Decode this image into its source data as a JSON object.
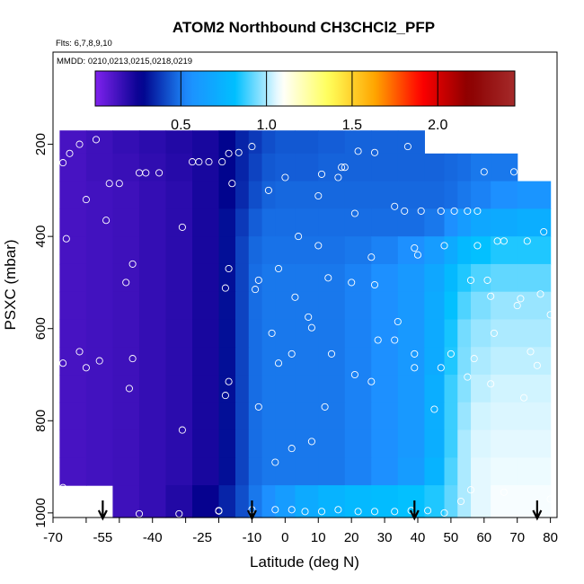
{
  "chart_data": {
    "type": "heatmap",
    "title": "ATOM2 Northbound CH3CHCl2_PFP",
    "notes": {
      "flights": "Flts: 6,7,8,9,10",
      "dates": "MMDD: 0210,0213,0215,0218,0219"
    },
    "xlabel": "Latitude (deg N)",
    "ylabel": "PSXC (mbar)",
    "xlim": [
      -70,
      82
    ],
    "ylim": [
      1010,
      0
    ],
    "x_ticks": [
      -70,
      -60,
      -50,
      -40,
      -30,
      -20,
      -10,
      0,
      10,
      20,
      30,
      40,
      50,
      60,
      70,
      80
    ],
    "x_tick_labels": [
      "-70",
      "-55",
      "-40",
      "-25",
      "-10",
      "0",
      "10",
      "20",
      "30",
      "40",
      "50",
      "60",
      "70",
      "80"
    ],
    "x_tick_label_values": [
      -70,
      -55,
      -40,
      -25,
      -10,
      0,
      10,
      20,
      30,
      40,
      50,
      60,
      70,
      80
    ],
    "y_tick_values": [
      200,
      400,
      600,
      800,
      1000
    ],
    "y_tick_labels": [
      "200",
      "400",
      "600",
      "800",
      "1000"
    ],
    "colorbar": {
      "range": [
        0,
        2.45
      ],
      "ticks": [
        0.5,
        1.0,
        1.5,
        2.0
      ],
      "tick_labels": [
        "0.5",
        "1.0",
        "1.5",
        "2.0"
      ],
      "colors": [
        "#7f22ee",
        "#00008b",
        "#1e8fff",
        "#00bfff",
        "#ffffff",
        "#ffff5a",
        "#ffa500",
        "#ff0000",
        "#8b0000",
        "#a52a2a"
      ]
    },
    "grid": false,
    "profile_markers_lat": [
      -55,
      -10,
      39,
      76
    ],
    "field": {
      "lat_bins": [
        -68,
        -60,
        -52,
        -44,
        -36,
        -28,
        -20,
        -15,
        -11,
        -7,
        -3,
        3,
        10,
        18,
        26,
        34,
        42,
        48,
        52,
        56,
        62,
        70,
        80
      ],
      "p_bins": [
        170,
        220,
        280,
        340,
        400,
        460,
        520,
        580,
        640,
        700,
        760,
        820,
        880,
        940,
        1010
      ],
      "values": [
        [
          0.12,
          0.14,
          0.16,
          0.18,
          0.2,
          0.22,
          0.28,
          0.34,
          0.38,
          0.42,
          0.44,
          0.44,
          0.45,
          0.46,
          0.46,
          0.46,
          null,
          null,
          null,
          null,
          null,
          null
        ],
        [
          0.12,
          0.14,
          0.15,
          0.17,
          0.19,
          0.22,
          0.28,
          0.34,
          0.4,
          0.44,
          0.45,
          0.45,
          0.46,
          0.46,
          0.46,
          0.46,
          0.46,
          0.47,
          0.48,
          0.5,
          0.5,
          null
        ],
        [
          0.12,
          0.13,
          0.14,
          0.16,
          0.18,
          0.22,
          0.28,
          0.35,
          0.42,
          0.46,
          0.47,
          0.47,
          0.47,
          0.47,
          0.47,
          0.47,
          0.47,
          0.48,
          0.5,
          0.52,
          0.55,
          0.58
        ],
        [
          0.12,
          0.13,
          0.14,
          0.16,
          0.18,
          0.22,
          0.3,
          0.38,
          0.45,
          0.48,
          0.48,
          0.48,
          0.48,
          0.48,
          0.48,
          0.48,
          0.5,
          0.55,
          0.62,
          0.68,
          0.7,
          0.72
        ],
        [
          0.12,
          0.13,
          0.14,
          0.16,
          0.18,
          0.22,
          0.3,
          0.4,
          0.47,
          0.49,
          0.49,
          0.49,
          0.49,
          0.5,
          0.52,
          0.55,
          0.62,
          0.7,
          0.78,
          0.82,
          0.85,
          0.85
        ],
        [
          0.12,
          0.13,
          0.14,
          0.16,
          0.18,
          0.22,
          0.3,
          0.4,
          0.48,
          0.5,
          0.5,
          0.5,
          0.5,
          0.52,
          0.55,
          0.6,
          0.68,
          0.78,
          0.85,
          0.9,
          0.92,
          0.92
        ],
        [
          0.12,
          0.13,
          0.14,
          0.16,
          0.18,
          0.22,
          0.3,
          0.4,
          0.48,
          0.5,
          0.5,
          0.5,
          0.5,
          0.52,
          0.55,
          0.6,
          0.7,
          0.82,
          0.9,
          0.95,
          0.98,
          0.98
        ],
        [
          0.12,
          0.13,
          0.14,
          0.16,
          0.18,
          0.22,
          0.3,
          0.4,
          0.48,
          0.5,
          0.5,
          0.5,
          0.5,
          0.52,
          0.55,
          0.6,
          0.7,
          0.84,
          0.94,
          0.98,
          1.0,
          1.0
        ],
        [
          0.12,
          0.13,
          0.14,
          0.16,
          0.18,
          0.22,
          0.3,
          0.4,
          0.48,
          0.5,
          0.5,
          0.5,
          0.5,
          0.52,
          0.55,
          0.6,
          0.7,
          0.85,
          0.95,
          1.0,
          1.02,
          1.02
        ],
        [
          0.12,
          0.13,
          0.14,
          0.16,
          0.18,
          0.22,
          0.3,
          0.4,
          0.48,
          0.5,
          0.5,
          0.5,
          0.5,
          0.52,
          0.55,
          0.6,
          0.72,
          0.88,
          0.96,
          1.02,
          1.04,
          1.04
        ],
        [
          0.12,
          0.13,
          0.14,
          0.16,
          0.18,
          0.22,
          0.3,
          0.4,
          0.48,
          0.5,
          0.5,
          0.5,
          0.5,
          0.52,
          0.55,
          0.6,
          0.72,
          0.88,
          0.98,
          1.04,
          1.05,
          1.05
        ],
        [
          0.12,
          0.13,
          0.14,
          0.16,
          0.18,
          0.22,
          0.3,
          0.4,
          0.48,
          0.5,
          0.5,
          0.5,
          0.5,
          0.52,
          0.55,
          0.6,
          0.72,
          0.88,
          1.0,
          1.05,
          1.06,
          1.06
        ],
        [
          0.12,
          0.13,
          0.14,
          0.16,
          0.18,
          0.22,
          0.3,
          0.4,
          0.48,
          0.5,
          0.5,
          0.5,
          0.5,
          0.52,
          0.55,
          0.62,
          0.75,
          0.9,
          1.0,
          1.06,
          1.07,
          1.07
        ],
        [
          null,
          null,
          0.14,
          0.16,
          0.2,
          0.26,
          0.34,
          0.42,
          0.5,
          0.55,
          0.62,
          0.7,
          0.75,
          0.78,
          0.8,
          0.82,
          0.85,
          0.92,
          1.0,
          1.06,
          1.08,
          1.08
        ]
      ]
    },
    "samples": [
      {
        "lat": -67,
        "p": 240
      },
      {
        "lat": -65,
        "p": 220
      },
      {
        "lat": -62,
        "p": 200
      },
      {
        "lat": -57,
        "p": 190
      },
      {
        "lat": -60,
        "p": 320
      },
      {
        "lat": -66,
        "p": 405
      },
      {
        "lat": -53,
        "p": 285
      },
      {
        "lat": -50,
        "p": 285
      },
      {
        "lat": -54,
        "p": 365
      },
      {
        "lat": -42,
        "p": 262
      },
      {
        "lat": -44,
        "p": 262
      },
      {
        "lat": -38,
        "p": 262
      },
      {
        "lat": -48,
        "p": 500
      },
      {
        "lat": -46,
        "p": 460
      },
      {
        "lat": -62,
        "p": 650
      },
      {
        "lat": -60,
        "p": 685
      },
      {
        "lat": -56,
        "p": 670
      },
      {
        "lat": -67,
        "p": 675
      },
      {
        "lat": -47,
        "p": 730
      },
      {
        "lat": -46,
        "p": 665
      },
      {
        "lat": -67,
        "p": 945
      },
      {
        "lat": -60,
        "p": 950
      },
      {
        "lat": -31,
        "p": 380
      },
      {
        "lat": -28,
        "p": 238
      },
      {
        "lat": -26,
        "p": 238
      },
      {
        "lat": -23,
        "p": 238
      },
      {
        "lat": -19,
        "p": 238
      },
      {
        "lat": -17,
        "p": 220
      },
      {
        "lat": -14,
        "p": 218
      },
      {
        "lat": -10,
        "p": 205
      },
      {
        "lat": -16,
        "p": 285
      },
      {
        "lat": -17,
        "p": 470
      },
      {
        "lat": -18,
        "p": 512
      },
      {
        "lat": -17,
        "p": 715
      },
      {
        "lat": -18,
        "p": 745
      },
      {
        "lat": -9,
        "p": 515
      },
      {
        "lat": -8,
        "p": 495
      },
      {
        "lat": -5,
        "p": 300
      },
      {
        "lat": -2,
        "p": 470
      },
      {
        "lat": 0,
        "p": 272
      },
      {
        "lat": 4,
        "p": 400
      },
      {
        "lat": 3,
        "p": 532
      },
      {
        "lat": -4,
        "p": 610
      },
      {
        "lat": -2,
        "p": 675
      },
      {
        "lat": 2,
        "p": 655
      },
      {
        "lat": -8,
        "p": 770
      },
      {
        "lat": -3,
        "p": 890
      },
      {
        "lat": 2,
        "p": 860
      },
      {
        "lat": 7,
        "p": 575
      },
      {
        "lat": 8,
        "p": 598
      },
      {
        "lat": 10,
        "p": 420
      },
      {
        "lat": 11,
        "p": 265
      },
      {
        "lat": 10,
        "p": 312
      },
      {
        "lat": 13,
        "p": 490
      },
      {
        "lat": 14,
        "p": 655
      },
      {
        "lat": 12,
        "p": 770
      },
      {
        "lat": 8,
        "p": 845
      },
      {
        "lat": 16,
        "p": 272
      },
      {
        "lat": 17,
        "p": 250
      },
      {
        "lat": 18,
        "p": 250
      },
      {
        "lat": 21,
        "p": 350
      },
      {
        "lat": 22,
        "p": 215
      },
      {
        "lat": 27,
        "p": 218
      },
      {
        "lat": 26,
        "p": 445
      },
      {
        "lat": 20,
        "p": 500
      },
      {
        "lat": 27,
        "p": 505
      },
      {
        "lat": 28,
        "p": 625
      },
      {
        "lat": 21,
        "p": 700
      },
      {
        "lat": 26,
        "p": 715
      },
      {
        "lat": 34,
        "p": 585
      },
      {
        "lat": 33,
        "p": 625
      },
      {
        "lat": 33,
        "p": 335
      },
      {
        "lat": 36,
        "p": 345
      },
      {
        "lat": 37,
        "p": 205
      },
      {
        "lat": 39,
        "p": 425
      },
      {
        "lat": 40,
        "p": 440
      },
      {
        "lat": 41,
        "p": 345
      },
      {
        "lat": 39,
        "p": 655
      },
      {
        "lat": 39,
        "p": 685
      },
      {
        "lat": 47,
        "p": 345
      },
      {
        "lat": 51,
        "p": 345
      },
      {
        "lat": 48,
        "p": 420
      },
      {
        "lat": 47,
        "p": 685
      },
      {
        "lat": 50,
        "p": 655
      },
      {
        "lat": 45,
        "p": 775
      },
      {
        "lat": 55,
        "p": 345
      },
      {
        "lat": 58,
        "p": 345
      },
      {
        "lat": 58,
        "p": 420
      },
      {
        "lat": 56,
        "p": 495
      },
      {
        "lat": 61,
        "p": 495
      },
      {
        "lat": 62,
        "p": 530
      },
      {
        "lat": 60,
        "p": 260
      },
      {
        "lat": 57,
        "p": 665
      },
      {
        "lat": 55,
        "p": 705
      },
      {
        "lat": 62,
        "p": 720
      },
      {
        "lat": 63,
        "p": 610
      },
      {
        "lat": 64,
        "p": 410
      },
      {
        "lat": 66,
        "p": 410
      },
      {
        "lat": 69,
        "p": 260
      },
      {
        "lat": 71,
        "p": 535
      },
      {
        "lat": 72,
        "p": 750
      },
      {
        "lat": 73,
        "p": 410
      },
      {
        "lat": 74,
        "p": 650
      },
      {
        "lat": 77,
        "p": 525
      },
      {
        "lat": 76,
        "p": 680
      },
      {
        "lat": 78,
        "p": 390
      },
      {
        "lat": 79,
        "p": 270
      },
      {
        "lat": 80,
        "p": 570
      },
      {
        "lat": 70,
        "p": 550
      },
      {
        "lat": 56,
        "p": 950
      },
      {
        "lat": 66,
        "p": 955
      },
      {
        "lat": 80,
        "p": 970
      },
      {
        "lat": 53,
        "p": 975
      },
      {
        "lat": 48,
        "p": 1000
      },
      {
        "lat": 43,
        "p": 995
      },
      {
        "lat": 38,
        "p": 995
      },
      {
        "lat": 33,
        "p": 997
      },
      {
        "lat": 27,
        "p": 997
      },
      {
        "lat": 22,
        "p": 997
      },
      {
        "lat": 16,
        "p": 993
      },
      {
        "lat": 11,
        "p": 997
      },
      {
        "lat": 6,
        "p": 997
      },
      {
        "lat": 2,
        "p": 993
      },
      {
        "lat": -3,
        "p": 993
      },
      {
        "lat": -10,
        "p": 993
      },
      {
        "lat": -20,
        "p": 995
      },
      {
        "lat": -32,
        "p": 1002
      },
      {
        "lat": -44,
        "p": 1002
      },
      {
        "lat": -31,
        "p": 820
      },
      {
        "lat": -20,
        "p": 996
      }
    ]
  }
}
